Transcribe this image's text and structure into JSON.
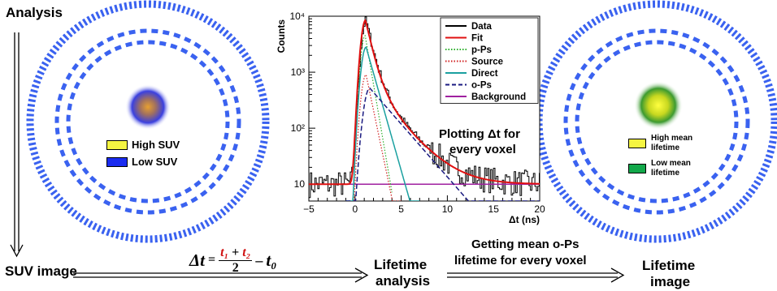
{
  "labels": {
    "analysis": "Analysis",
    "suv_image": "SUV image",
    "lifetime_analysis_l1": "Lifetime",
    "lifetime_analysis_l2": "analysis",
    "getting_mean_l1": "Getting mean o-Ps",
    "getting_mean_l2": "lifetime for every voxel",
    "lifetime_image_l1": "Lifetime",
    "lifetime_image_l2": "image",
    "plotting_l1": "Plotting Δt for",
    "plotting_l2": "every voxel"
  },
  "formula": {
    "lhs": "Δt",
    "equals": "=",
    "t1": "t₁",
    "plus": "+",
    "t2": "t₂",
    "denominator": "2",
    "minus": "–",
    "t0": "t₀"
  },
  "legend_left": {
    "high": "High SUV",
    "low": "Low SUV",
    "high_color": "#f5f542",
    "low_color": "#1a2cf0"
  },
  "legend_right": {
    "high_l1": "High mean",
    "high_l2": "lifetime",
    "low_l1": "Low mean",
    "low_l2": "lifetime",
    "high_color": "#f5f542",
    "low_color": "#12a84a"
  },
  "colors": {
    "ring": "#3a62f0",
    "ring_dash": "#3a62f0"
  },
  "chart_data": {
    "type": "line",
    "ylabel": "Counts",
    "xlabel": "Δt (ns)",
    "xlim": [
      -5,
      20
    ],
    "ylim": [
      5,
      10000
    ],
    "yscale": "log",
    "x_ticks": [
      -5,
      0,
      5,
      10,
      15,
      20
    ],
    "y_ticks": [
      {
        "value": 10,
        "label": "10"
      },
      {
        "value": 100,
        "label": "10²"
      },
      {
        "value": 1000,
        "label": "10³"
      },
      {
        "value": 10000,
        "label": "10⁴"
      }
    ],
    "legend_position": "top-right",
    "series": [
      {
        "name": "Data",
        "color": "#000000",
        "style": "solid"
      },
      {
        "name": "Fit",
        "color": "#e01010",
        "style": "solid"
      },
      {
        "name": "p-Ps",
        "color": "#2cb02c",
        "style": "dotted"
      },
      {
        "name": "Source",
        "color": "#d02020",
        "style": "dotted"
      },
      {
        "name": "Direct",
        "color": "#1aa0a0",
        "style": "solid"
      },
      {
        "name": "o-Ps",
        "color": "#1a1a80",
        "style": "dashed"
      },
      {
        "name": "Background",
        "color": "#a020a0",
        "style": "solid"
      }
    ]
  }
}
